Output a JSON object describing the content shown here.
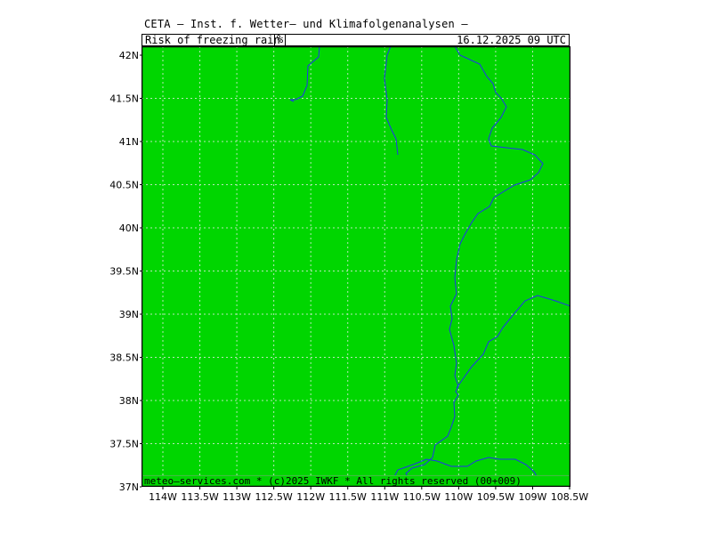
{
  "header": {
    "title": "CETA — Inst. f. Wetter— und Klimafolgenanalysen —",
    "parameter": "Risk_of_freezing_rain_",
    "unit": "%",
    "datetime": "16.12.2025  09 UTC"
  },
  "map": {
    "fill_color": "#00d600",
    "boundary_color": "#2233ee",
    "grid_color": "#b8e8b8",
    "footer": "meteo—services.com * (c)2025 IWKF * All rights reserved (00+009)",
    "lat_labels": [
      "42N",
      "41.5N",
      "41N",
      "40.5N",
      "40N",
      "39.5N",
      "39N",
      "38.5N",
      "38N",
      "37.5N",
      "37N"
    ],
    "lon_labels": [
      "114W",
      "113.5W",
      "113W",
      "112.5W",
      "112W",
      "111.5W",
      "111W",
      "110.5W",
      "110W",
      "109.5W",
      "109W",
      "108.5W"
    ]
  }
}
